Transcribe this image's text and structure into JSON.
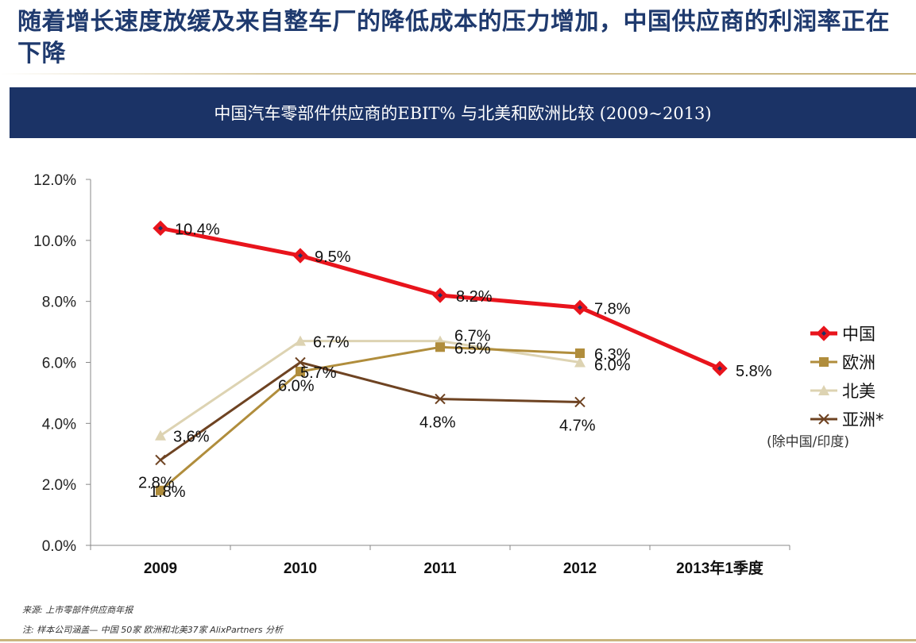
{
  "headline": "随着增长速度放缓及来自整车厂的降低成本的压力增加，中国供应商的利润率正在下降",
  "chart_data": {
    "type": "line",
    "title": "中国汽车零部件供应商的EBIT% 与北美和欧洲比较 (2009~2013)",
    "categories": [
      "2009",
      "2010",
      "2011",
      "2012",
      "2013年1季度"
    ],
    "ylim": [
      0,
      12
    ],
    "yticks": [
      "0.0%",
      "2.0%",
      "4.0%",
      "6.0%",
      "8.0%",
      "10.0%",
      "12.0%"
    ],
    "grid": false,
    "legend_position": "right",
    "legend_note": "(除中国/印度)",
    "series": [
      {
        "name": "中国",
        "color": "#e8141c",
        "marker": "diamond",
        "values": [
          10.4,
          9.5,
          8.2,
          7.8,
          5.8
        ],
        "labels": [
          "10.4%",
          "9.5%",
          "8.2%",
          "7.8%",
          "5.8%"
        ]
      },
      {
        "name": "欧洲",
        "color": "#b08d3c",
        "marker": "square",
        "values": [
          1.8,
          5.7,
          6.5,
          6.3,
          null
        ],
        "labels": [
          "1.8%",
          "5.7%",
          "6.5%",
          "6.3%",
          null
        ]
      },
      {
        "name": "北美",
        "color": "#ddd3b2",
        "marker": "triangle",
        "values": [
          3.6,
          6.7,
          6.7,
          6.0,
          null
        ],
        "labels": [
          "3.6%",
          "6.7%",
          "6.7%",
          "6.0%",
          null
        ]
      },
      {
        "name": "亚洲*",
        "color": "#6e4322",
        "marker": "x",
        "values": [
          2.8,
          6.0,
          4.8,
          4.7,
          null
        ],
        "labels": [
          "2.8%",
          "6.0%",
          "4.8%",
          "4.7%",
          null
        ]
      }
    ]
  },
  "footnotes": {
    "source": "来源: 上市零部件供应商年报",
    "note": "注: 样本公司涵盖— 中国 50家 欧洲和北美37家 AlixPartners 分析"
  }
}
